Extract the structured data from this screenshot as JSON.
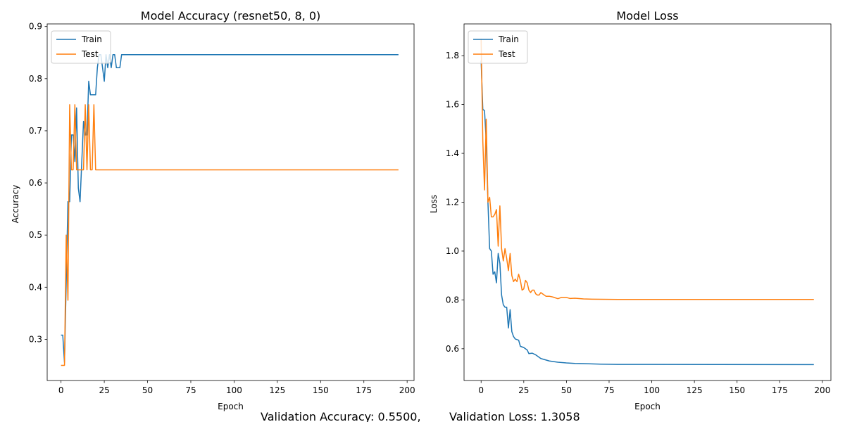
{
  "chart_data": [
    {
      "type": "line",
      "title": "Model Accuracy (resnet50, 8, 0)",
      "xlabel": "Epoch",
      "ylabel": "Accuracy",
      "xlim": [
        -8,
        204
      ],
      "ylim": [
        0.221,
        0.905
      ],
      "xticks": [
        0,
        25,
        50,
        75,
        100,
        125,
        150,
        175,
        200
      ],
      "yticks": [
        0.3,
        0.4,
        0.5,
        0.6,
        0.7,
        0.8,
        0.9
      ],
      "grid": false,
      "legend_loc": "upper left",
      "series": [
        {
          "name": "Train",
          "color": "#1f77b4",
          "points": [
            [
              0,
              0.308
            ],
            [
              1,
              0.308
            ],
            [
              2,
              0.256
            ],
            [
              3,
              0.41
            ],
            [
              4,
              0.564
            ],
            [
              5,
              0.564
            ],
            [
              6,
              0.692
            ],
            [
              7,
              0.692
            ],
            [
              8,
              0.641
            ],
            [
              9,
              0.744
            ],
            [
              10,
              0.59
            ],
            [
              11,
              0.564
            ],
            [
              12,
              0.641
            ],
            [
              13,
              0.718
            ],
            [
              14,
              0.692
            ],
            [
              15,
              0.692
            ],
            [
              16,
              0.795
            ],
            [
              17,
              0.769
            ],
            [
              18,
              0.769
            ],
            [
              19,
              0.769
            ],
            [
              20,
              0.769
            ],
            [
              21,
              0.821
            ],
            [
              22,
              0.846
            ],
            [
              23,
              0.846
            ],
            [
              24,
              0.821
            ],
            [
              25,
              0.795
            ],
            [
              26,
              0.846
            ],
            [
              27,
              0.821
            ],
            [
              28,
              0.846
            ],
            [
              29,
              0.821
            ],
            [
              30,
              0.846
            ],
            [
              31,
              0.846
            ],
            [
              32,
              0.821
            ],
            [
              33,
              0.821
            ],
            [
              34,
              0.821
            ],
            [
              35,
              0.846
            ],
            [
              195,
              0.846
            ]
          ]
        },
        {
          "name": "Test",
          "color": "#ff7f0e",
          "points": [
            [
              0,
              0.25
            ],
            [
              1,
              0.25
            ],
            [
              2,
              0.25
            ],
            [
              3,
              0.5
            ],
            [
              4,
              0.375
            ],
            [
              5,
              0.75
            ],
            [
              6,
              0.625
            ],
            [
              7,
              0.625
            ],
            [
              8,
              0.75
            ],
            [
              9,
              0.625
            ],
            [
              10,
              0.625
            ],
            [
              11,
              0.625
            ],
            [
              12,
              0.625
            ],
            [
              13,
              0.625
            ],
            [
              14,
              0.75
            ],
            [
              15,
              0.625
            ],
            [
              16,
              0.75
            ],
            [
              17,
              0.625
            ],
            [
              18,
              0.625
            ],
            [
              19,
              0.75
            ],
            [
              20,
              0.625
            ],
            [
              195,
              0.625
            ]
          ]
        }
      ]
    },
    {
      "type": "line",
      "title": "Model Loss",
      "xlabel": "Epoch",
      "ylabel": "Loss",
      "xlim": [
        -10,
        205
      ],
      "ylim": [
        0.47,
        1.93
      ],
      "xticks": [
        0,
        25,
        50,
        75,
        100,
        125,
        150,
        175,
        200
      ],
      "yticks": [
        0.6,
        0.8,
        1.0,
        1.2,
        1.4,
        1.6,
        1.8
      ],
      "grid": false,
      "legend_loc": "upper left",
      "series": [
        {
          "name": "Train",
          "color": "#1f77b4",
          "points": [
            [
              0,
              1.78
            ],
            [
              1,
              1.58
            ],
            [
              2,
              1.575
            ],
            [
              3,
              1.45
            ],
            [
              4,
              1.2
            ],
            [
              5,
              1.01
            ],
            [
              6,
              1.0
            ],
            [
              7,
              0.905
            ],
            [
              8,
              0.915
            ],
            [
              9,
              0.87
            ],
            [
              10,
              0.99
            ],
            [
              11,
              0.95
            ],
            [
              12,
              0.82
            ],
            [
              13,
              0.78
            ],
            [
              14,
              0.77
            ],
            [
              15,
              0.77
            ],
            [
              16,
              0.685
            ],
            [
              17,
              0.76
            ],
            [
              18,
              0.67
            ],
            [
              19,
              0.65
            ],
            [
              20,
              0.64
            ],
            [
              22,
              0.635
            ],
            [
              23,
              0.61
            ],
            [
              25,
              0.605
            ],
            [
              27,
              0.595
            ],
            [
              28,
              0.58
            ],
            [
              30,
              0.582
            ],
            [
              32,
              0.575
            ],
            [
              35,
              0.56
            ],
            [
              40,
              0.55
            ],
            [
              45,
              0.545
            ],
            [
              50,
              0.542
            ],
            [
              55,
              0.54
            ],
            [
              60,
              0.539
            ],
            [
              70,
              0.537
            ],
            [
              80,
              0.536
            ],
            [
              100,
              0.536
            ],
            [
              195,
              0.535
            ]
          ]
        },
        {
          "name": "Test",
          "color": "#ff7f0e",
          "points": [
            [
              0,
              1.87
            ],
            [
              1,
              1.45
            ],
            [
              2,
              1.25
            ],
            [
              3,
              1.54
            ],
            [
              4,
              1.2
            ],
            [
              5,
              1.22
            ],
            [
              6,
              1.14
            ],
            [
              7,
              1.14
            ],
            [
              8,
              1.15
            ],
            [
              9,
              1.17
            ],
            [
              10,
              1.02
            ],
            [
              11,
              1.185
            ],
            [
              12,
              1.01
            ],
            [
              13,
              0.96
            ],
            [
              14,
              1.01
            ],
            [
              15,
              0.97
            ],
            [
              16,
              0.92
            ],
            [
              17,
              0.99
            ],
            [
              18,
              0.9
            ],
            [
              19,
              0.875
            ],
            [
              20,
              0.885
            ],
            [
              21,
              0.875
            ],
            [
              22,
              0.905
            ],
            [
              23,
              0.88
            ],
            [
              24,
              0.84
            ],
            [
              25,
              0.845
            ],
            [
              26,
              0.88
            ],
            [
              27,
              0.87
            ],
            [
              28,
              0.84
            ],
            [
              29,
              0.83
            ],
            [
              30,
              0.84
            ],
            [
              31,
              0.84
            ],
            [
              32,
              0.825
            ],
            [
              33,
              0.82
            ],
            [
              34,
              0.82
            ],
            [
              35,
              0.83
            ],
            [
              36,
              0.825
            ],
            [
              38,
              0.815
            ],
            [
              40,
              0.815
            ],
            [
              42,
              0.812
            ],
            [
              45,
              0.805
            ],
            [
              47,
              0.81
            ],
            [
              50,
              0.81
            ],
            [
              52,
              0.806
            ],
            [
              55,
              0.807
            ],
            [
              60,
              0.804
            ],
            [
              65,
              0.803
            ],
            [
              80,
              0.802
            ],
            [
              195,
              0.802
            ]
          ]
        }
      ]
    }
  ],
  "footer": {
    "validation_accuracy": "Validation Accuracy: 0.5500,",
    "validation_loss": "Validation Loss: 1.3058"
  }
}
